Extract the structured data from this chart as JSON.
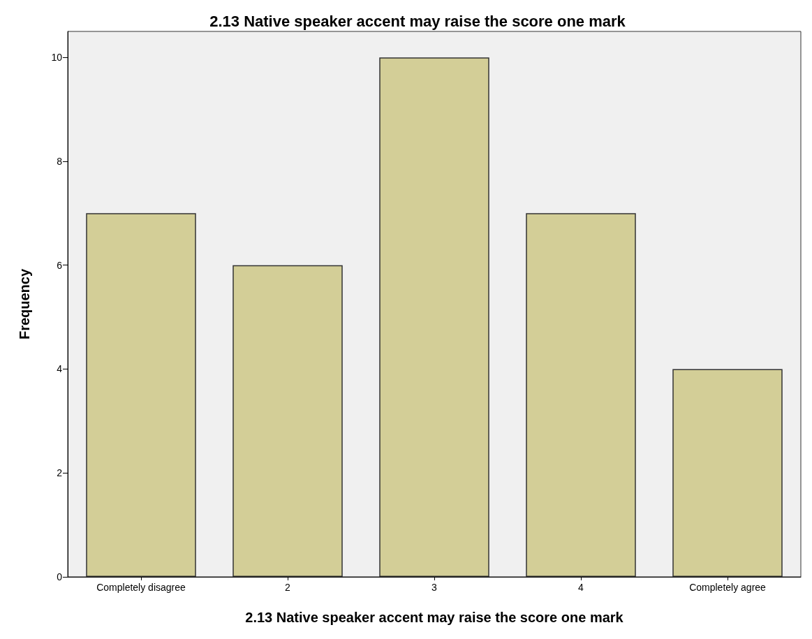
{
  "chart_data": {
    "type": "bar",
    "title": "2.13 Native speaker accent may raise the score one mark",
    "xlabel": "2.13 Native speaker accent may raise the score one mark",
    "ylabel": "Frequency",
    "categories": [
      "Completely disagree",
      "2",
      "3",
      "4",
      "Completely agree"
    ],
    "values": [
      7,
      6,
      10,
      7,
      4
    ],
    "color": "#d3ce97",
    "ylim": [
      0,
      10.5
    ],
    "yticks": [
      0,
      2,
      4,
      6,
      8,
      10
    ],
    "grid": false
  }
}
